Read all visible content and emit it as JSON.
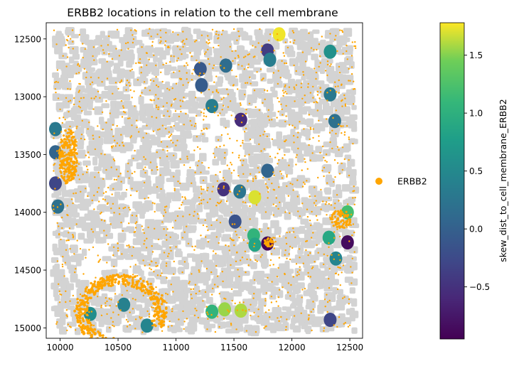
{
  "chart_data": {
    "type": "scatter",
    "title": "ERBB2 locations in relation to the cell membrane",
    "xlabel": "",
    "ylabel": "",
    "xlim": [
      9880,
      12610
    ],
    "ylim": [
      15090,
      12360
    ],
    "y_inverted": true,
    "x_ticks": [
      10000,
      10500,
      11000,
      11500,
      12000,
      12500
    ],
    "y_ticks": [
      12500,
      13000,
      13500,
      14000,
      14500,
      15000
    ],
    "legend": {
      "placement": "right",
      "entries": [
        {
          "label": "ERBB2",
          "color": "#ffa500"
        }
      ]
    },
    "colorbar": {
      "label": "skew_dist_to_cell_membrane_ERBB2",
      "colormap": "viridis",
      "range": [
        -0.95,
        1.78
      ],
      "ticks": [
        -0.5,
        0.0,
        0.5,
        1.0,
        1.5
      ],
      "tick_labels": [
        "−0.5",
        "0.0",
        "0.5",
        "1.0",
        "1.5"
      ]
    },
    "background_cells_color": "#d3d3d3",
    "colored_cells": [
      {
        "x": 11890,
        "y": 12460,
        "skew": 1.75
      },
      {
        "x": 11790,
        "y": 12600,
        "skew": -0.4
      },
      {
        "x": 11810,
        "y": 12680,
        "skew": 0.35
      },
      {
        "x": 12330,
        "y": 12610,
        "skew": 0.6
      },
      {
        "x": 11210,
        "y": 12760,
        "skew": -0.1
      },
      {
        "x": 11220,
        "y": 12900,
        "skew": -0.05
      },
      {
        "x": 11430,
        "y": 12730,
        "skew": 0.15
      },
      {
        "x": 11310,
        "y": 13080,
        "skew": 0.35
      },
      {
        "x": 11560,
        "y": 13200,
        "skew": -0.55
      },
      {
        "x": 12330,
        "y": 12980,
        "skew": 0.3
      },
      {
        "x": 12370,
        "y": 13210,
        "skew": 0.2
      },
      {
        "x": 11790,
        "y": 13640,
        "skew": 0.05
      },
      {
        "x": 11410,
        "y": 13800,
        "skew": -0.5
      },
      {
        "x": 11550,
        "y": 13820,
        "skew": 0.25
      },
      {
        "x": 11680,
        "y": 13870,
        "skew": 1.7
      },
      {
        "x": 11510,
        "y": 14080,
        "skew": -0.15
      },
      {
        "x": 11670,
        "y": 14200,
        "skew": 1.05
      },
      {
        "x": 11680,
        "y": 14280,
        "skew": 0.85
      },
      {
        "x": 11790,
        "y": 14270,
        "skew": -0.9
      },
      {
        "x": 9960,
        "y": 13280,
        "skew": 0.3
      },
      {
        "x": 9960,
        "y": 13480,
        "skew": 0.05
      },
      {
        "x": 9960,
        "y": 13750,
        "skew": -0.3
      },
      {
        "x": 9980,
        "y": 13950,
        "skew": 0.2
      },
      {
        "x": 12480,
        "y": 14000,
        "skew": 1.2
      },
      {
        "x": 12320,
        "y": 14220,
        "skew": 0.9
      },
      {
        "x": 12480,
        "y": 14260,
        "skew": -0.85
      },
      {
        "x": 12380,
        "y": 14400,
        "skew": 0.45
      },
      {
        "x": 11310,
        "y": 14860,
        "skew": 1.05
      },
      {
        "x": 11420,
        "y": 14840,
        "skew": 1.55
      },
      {
        "x": 11560,
        "y": 14850,
        "skew": 1.6
      },
      {
        "x": 12330,
        "y": 14930,
        "skew": -0.3
      },
      {
        "x": 10260,
        "y": 14880,
        "skew": 0.55
      },
      {
        "x": 10550,
        "y": 14800,
        "skew": 0.4
      },
      {
        "x": 10750,
        "y": 14980,
        "skew": 0.45
      }
    ]
  }
}
